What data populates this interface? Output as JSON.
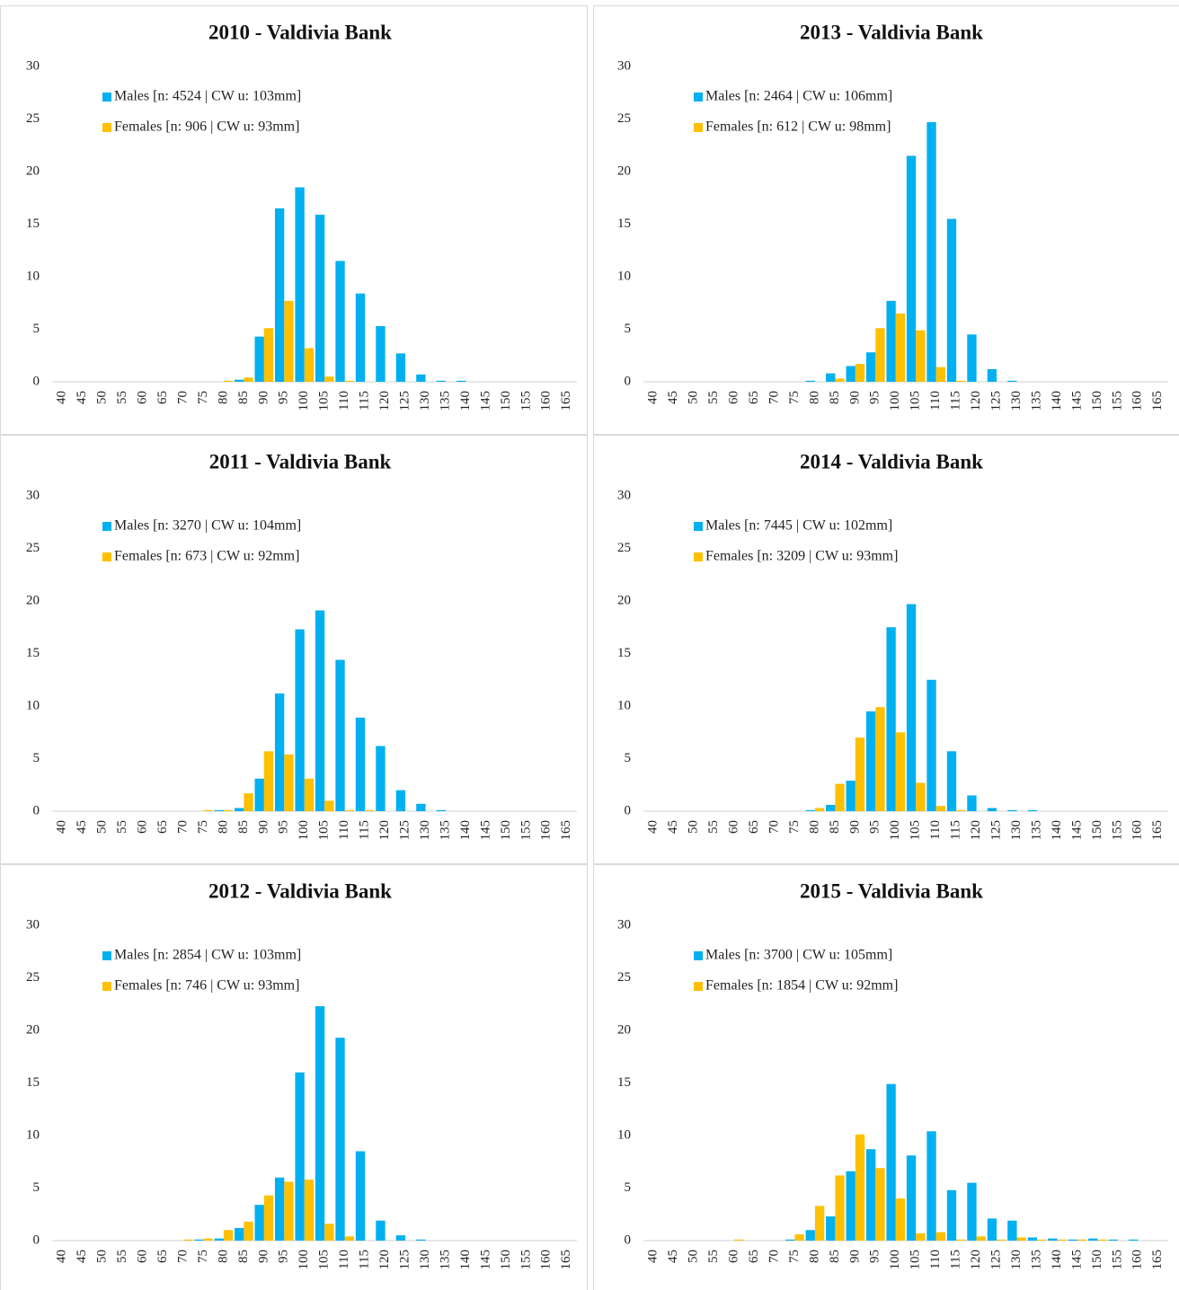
{
  "chart_data": [
    {
      "type": "bar",
      "title": "2010 - Valdivia Bank",
      "categories": [
        "40",
        "45",
        "50",
        "55",
        "60",
        "65",
        "70",
        "75",
        "80",
        "85",
        "90",
        "95",
        "100",
        "105",
        "110",
        "115",
        "120",
        "125",
        "130",
        "135",
        "140",
        "145",
        "150",
        "155",
        "160",
        "165"
      ],
      "series": [
        {
          "name": "Males [n: 4524   |  CW u: 103mm]",
          "color": "#00b0f0",
          "values": [
            0,
            0,
            0,
            0,
            0,
            0,
            0,
            0,
            0,
            0.2,
            4.3,
            16.5,
            18.5,
            15.9,
            11.5,
            8.4,
            5.3,
            2.7,
            0.7,
            0.1,
            0.1,
            0,
            0,
            0,
            0,
            0
          ]
        },
        {
          "name": "Females [n: 906   |  CW u: 93mm]",
          "color": "#ffc000",
          "values": [
            0,
            0,
            0,
            0,
            0,
            0,
            0,
            0,
            0.1,
            0.4,
            5.1,
            7.7,
            3.2,
            0.5,
            0.1,
            0,
            0,
            0,
            0,
            0,
            0,
            0,
            0,
            0,
            0,
            0
          ]
        }
      ],
      "ylim": [
        0,
        30
      ],
      "yticks": [
        0,
        5,
        10,
        15,
        20,
        25,
        30
      ]
    },
    {
      "type": "bar",
      "title": "2011 - Valdivia Bank",
      "categories": [
        "40",
        "45",
        "50",
        "55",
        "60",
        "65",
        "70",
        "75",
        "80",
        "85",
        "90",
        "95",
        "100",
        "105",
        "110",
        "115",
        "120",
        "125",
        "130",
        "135",
        "140",
        "145",
        "150",
        "155",
        "160",
        "165"
      ],
      "series": [
        {
          "name": "Males [n: 3270   |  CW u: 104mm]",
          "color": "#00b0f0",
          "values": [
            0,
            0,
            0,
            0,
            0,
            0,
            0,
            0,
            0.1,
            0.3,
            3.1,
            11.2,
            17.3,
            19.1,
            14.4,
            8.9,
            6.2,
            2.0,
            0.7,
            0.1,
            0,
            0,
            0,
            0,
            0,
            0
          ]
        },
        {
          "name": "Females [n: 673   |  CW u: 92mm]",
          "color": "#ffc000",
          "values": [
            0,
            0,
            0,
            0,
            0,
            0,
            0,
            0.1,
            0.1,
            1.7,
            5.7,
            5.4,
            3.1,
            1.0,
            0.1,
            0.1,
            0,
            0,
            0,
            0,
            0,
            0,
            0,
            0,
            0,
            0
          ]
        }
      ],
      "ylim": [
        0,
        30
      ],
      "yticks": [
        0,
        5,
        10,
        15,
        20,
        25,
        30
      ]
    },
    {
      "type": "bar",
      "title": "2012 - Valdivia Bank",
      "categories": [
        "40",
        "45",
        "50",
        "55",
        "60",
        "65",
        "70",
        "75",
        "80",
        "85",
        "90",
        "95",
        "100",
        "105",
        "110",
        "115",
        "120",
        "125",
        "130",
        "135",
        "140",
        "145",
        "150",
        "155",
        "160",
        "165"
      ],
      "series": [
        {
          "name": "Males [n: 2854   |  CW u: 103mm]",
          "color": "#00b0f0",
          "values": [
            0,
            0,
            0,
            0,
            0,
            0,
            0,
            0.1,
            0.2,
            1.2,
            3.4,
            6.0,
            16.0,
            22.3,
            19.3,
            8.5,
            1.9,
            0.5,
            0.1,
            0,
            0,
            0,
            0,
            0,
            0,
            0
          ]
        },
        {
          "name": "Females [n: 746   |  CW u: 93mm]",
          "color": "#ffc000",
          "values": [
            0,
            0,
            0,
            0,
            0,
            0,
            0.1,
            0.2,
            1.0,
            1.8,
            4.3,
            5.6,
            5.8,
            1.6,
            0.4,
            0,
            0,
            0,
            0,
            0,
            0,
            0,
            0,
            0,
            0,
            0
          ]
        }
      ],
      "ylim": [
        0,
        30
      ],
      "yticks": [
        0,
        5,
        10,
        15,
        20,
        25,
        30
      ]
    },
    {
      "type": "bar",
      "title": "2013 - Valdivia Bank",
      "categories": [
        "40",
        "45",
        "50",
        "55",
        "60",
        "65",
        "70",
        "75",
        "80",
        "85",
        "90",
        "95",
        "100",
        "105",
        "110",
        "115",
        "120",
        "125",
        "130",
        "135",
        "140",
        "145",
        "150",
        "155",
        "160",
        "165"
      ],
      "series": [
        {
          "name": "Males [n: 2464   |  CW u: 106mm]",
          "color": "#00b0f0",
          "values": [
            0,
            0,
            0,
            0,
            0,
            0,
            0,
            0,
            0.1,
            0.8,
            1.5,
            2.8,
            7.7,
            21.5,
            24.7,
            15.5,
            4.5,
            1.2,
            0.1,
            0,
            0,
            0,
            0,
            0,
            0,
            0
          ]
        },
        {
          "name": "Females [n: 612   |  CW u: 98mm]",
          "color": "#ffc000",
          "values": [
            0,
            0,
            0,
            0,
            0,
            0,
            0,
            0,
            0,
            0.3,
            1.7,
            5.1,
            6.5,
            4.9,
            1.4,
            0.1,
            0,
            0,
            0,
            0,
            0,
            0,
            0,
            0,
            0,
            0
          ]
        }
      ],
      "ylim": [
        0,
        30
      ],
      "yticks": [
        0,
        5,
        10,
        15,
        20,
        25,
        30
      ]
    },
    {
      "type": "bar",
      "title": "2014 - Valdivia Bank",
      "categories": [
        "40",
        "45",
        "50",
        "55",
        "60",
        "65",
        "70",
        "75",
        "80",
        "85",
        "90",
        "95",
        "100",
        "105",
        "110",
        "115",
        "120",
        "125",
        "130",
        "135",
        "140",
        "145",
        "150",
        "155",
        "160",
        "165"
      ],
      "series": [
        {
          "name": "Males [n: 7445   |  CW u: 102mm]",
          "color": "#00b0f0",
          "values": [
            0,
            0,
            0,
            0,
            0,
            0,
            0,
            0,
            0.1,
            0.6,
            2.9,
            9.5,
            17.5,
            19.7,
            12.5,
            5.7,
            1.5,
            0.3,
            0.1,
            0.1,
            0,
            0,
            0,
            0,
            0,
            0
          ]
        },
        {
          "name": "Females [n: 3209   |  CW u: 93mm]",
          "color": "#ffc000",
          "values": [
            0,
            0,
            0,
            0,
            0,
            0,
            0,
            0,
            0.3,
            2.6,
            7.0,
            9.9,
            7.5,
            2.7,
            0.5,
            0.1,
            0,
            0,
            0,
            0,
            0,
            0,
            0,
            0,
            0,
            0
          ]
        }
      ],
      "ylim": [
        0,
        30
      ],
      "yticks": [
        0,
        5,
        10,
        15,
        20,
        25,
        30
      ]
    },
    {
      "type": "bar",
      "title": "2015 - Valdivia Bank",
      "categories": [
        "40",
        "45",
        "50",
        "55",
        "60",
        "65",
        "70",
        "75",
        "80",
        "85",
        "90",
        "95",
        "100",
        "105",
        "110",
        "115",
        "120",
        "125",
        "130",
        "135",
        "140",
        "145",
        "150",
        "155",
        "160",
        "165"
      ],
      "series": [
        {
          "name": "Males [n: 3700   |  CW u: 105mm]",
          "color": "#00b0f0",
          "values": [
            0,
            0,
            0,
            0,
            0,
            0,
            0,
            0.1,
            1.0,
            2.3,
            6.6,
            8.7,
            14.9,
            8.1,
            10.4,
            4.8,
            5.5,
            2.1,
            1.9,
            0.3,
            0.2,
            0.1,
            0.2,
            0.1,
            0.1,
            0
          ]
        },
        {
          "name": "Females [n: 1854   |  CW u: 92mm]",
          "color": "#ffc000",
          "values": [
            0,
            0,
            0,
            0,
            0.1,
            0,
            0,
            0.6,
            3.3,
            6.2,
            10.1,
            6.9,
            4.0,
            0.7,
            0.8,
            0.1,
            0.4,
            0.1,
            0.3,
            0.1,
            0.1,
            0.1,
            0.1,
            0,
            0,
            0
          ]
        }
      ],
      "ylim": [
        0,
        30
      ],
      "yticks": [
        0,
        5,
        10,
        15,
        20,
        25,
        30
      ]
    }
  ]
}
